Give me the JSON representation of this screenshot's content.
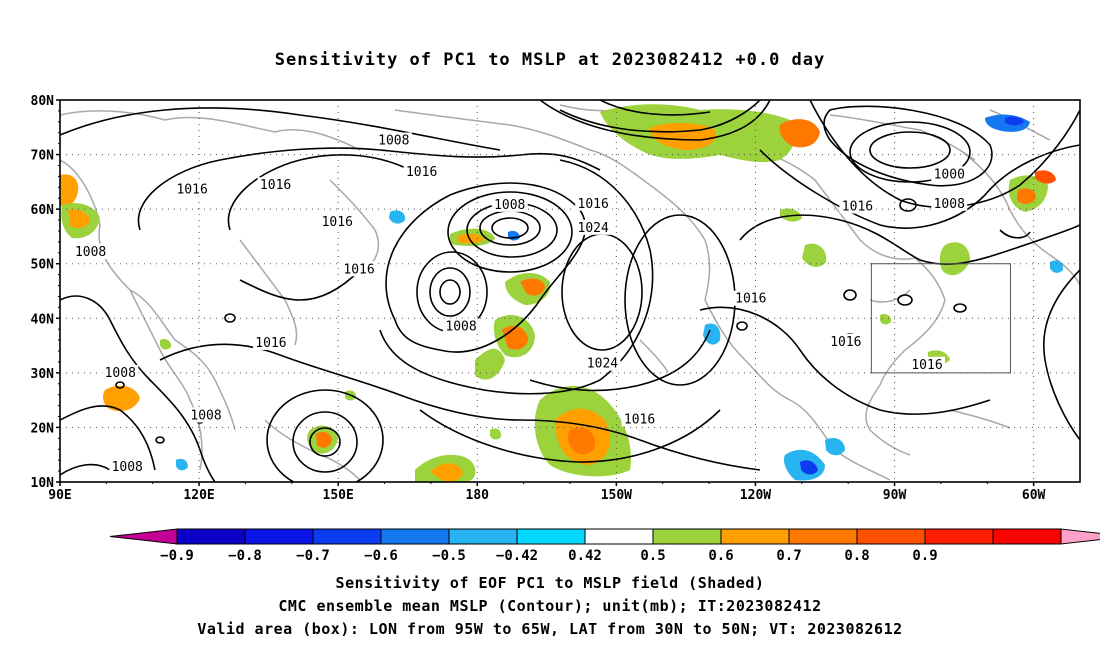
{
  "title": "Sensitivity of PC1 to MSLP at 2023082412 +0.0 day",
  "lat_labels": [
    "80N",
    "70N",
    "60N",
    "50N",
    "40N",
    "30N",
    "20N",
    "10N"
  ],
  "lon_labels": [
    "90E",
    "120E",
    "150E",
    "180",
    "150W",
    "120W",
    "90W",
    "60W"
  ],
  "lon_range": [
    90,
    310
  ],
  "lat_range": [
    10,
    80
  ],
  "contour_labels": [
    {
      "text": "1008",
      "lon": 162,
      "lat": 72.4
    },
    {
      "text": "1016",
      "lon": 168,
      "lat": 66.6
    },
    {
      "text": "1016",
      "lon": 118.5,
      "lat": 63.4
    },
    {
      "text": "1016",
      "lon": 136.5,
      "lat": 64.2
    },
    {
      "text": "1016",
      "lon": 149.8,
      "lat": 57.5
    },
    {
      "text": "1008",
      "lon": 187,
      "lat": 60.6
    },
    {
      "text": "1016",
      "lon": 205,
      "lat": 60.8
    },
    {
      "text": "1024",
      "lon": 205,
      "lat": 56.4
    },
    {
      "text": "1016",
      "lon": 262,
      "lat": 60.3
    },
    {
      "text": "1000",
      "lon": 281.8,
      "lat": 66.2
    },
    {
      "text": "1008",
      "lon": 281.8,
      "lat": 60.8
    },
    {
      "text": "1008",
      "lon": 96.6,
      "lat": 52
    },
    {
      "text": "1016",
      "lon": 154.5,
      "lat": 48.8
    },
    {
      "text": "1008",
      "lon": 176.5,
      "lat": 38.3
    },
    {
      "text": "1016",
      "lon": 135.5,
      "lat": 35.3
    },
    {
      "text": "1016",
      "lon": 239,
      "lat": 43.4
    },
    {
      "text": "1016",
      "lon": 259.5,
      "lat": 35.5
    },
    {
      "text": "1016",
      "lon": 277,
      "lat": 31.3
    },
    {
      "text": "1024",
      "lon": 207,
      "lat": 31.5
    },
    {
      "text": "1016",
      "lon": 215,
      "lat": 21.3
    },
    {
      "text": "1008",
      "lon": 103,
      "lat": 29.8
    },
    {
      "text": "1008",
      "lon": 121.5,
      "lat": 22
    },
    {
      "text": "1008",
      "lon": 104.5,
      "lat": 12.6
    }
  ],
  "valid_box": {
    "lon": [
      265,
      295
    ],
    "lat": [
      30,
      50
    ]
  },
  "colorbar": {
    "colors": [
      "#c40094",
      "#0a00c8",
      "#0a14e6",
      "#0c3cf0",
      "#1478f0",
      "#28b4f0",
      "#00d8ff",
      "#ffffff",
      "#9cd23c",
      "#ffa000",
      "#ff7800",
      "#ff5000",
      "#ff1e00",
      "#ff0000",
      "#ffa0c8"
    ],
    "labels": [
      "−0.9",
      "−0.8",
      "−0.7",
      "−0.6",
      "−0.5",
      "−0.42",
      "0.42",
      "0.5",
      "0.6",
      "0.7",
      "0.8",
      "0.9"
    ]
  },
  "captions": [
    "Sensitivity of EOF PC1 to MSLP field (Shaded)",
    "CMC ensemble mean MSLP (Contour); unit(mb); IT:2023082412",
    "Valid area (box): LON from 95W to 65W, LAT from 30N to 50N; VT: 2023082612"
  ]
}
